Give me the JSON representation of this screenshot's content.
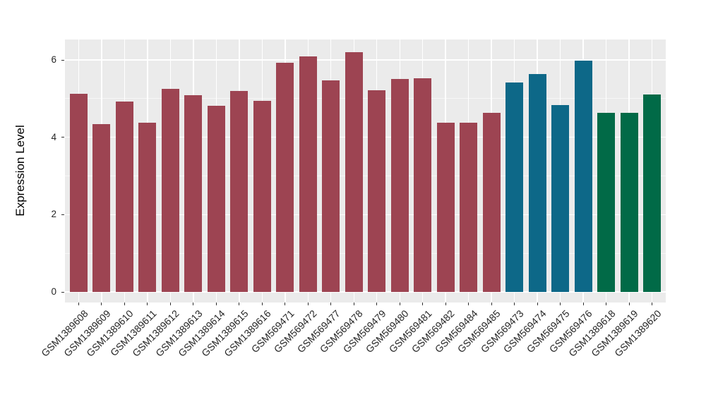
{
  "chart_data": {
    "type": "bar",
    "title": "",
    "xlabel": "",
    "ylabel": "Expression Level",
    "categories": [
      "GSM1389608",
      "GSM1389609",
      "GSM1389610",
      "GSM1389611",
      "GSM1389612",
      "GSM1389613",
      "GSM1389614",
      "GSM1389615",
      "GSM1389616",
      "GSM569471",
      "GSM569472",
      "GSM569477",
      "GSM569478",
      "GSM569479",
      "GSM569480",
      "GSM569481",
      "GSM569482",
      "GSM569484",
      "GSM569485",
      "GSM569473",
      "GSM569474",
      "GSM569475",
      "GSM569476",
      "GSM1389618",
      "GSM1389619",
      "GSM1389620"
    ],
    "values": [
      5.12,
      4.35,
      4.93,
      4.37,
      5.26,
      5.08,
      4.82,
      5.2,
      4.94,
      5.93,
      6.1,
      5.48,
      6.21,
      5.22,
      5.5,
      5.52,
      4.38,
      4.38,
      4.63,
      5.42,
      5.63,
      4.84,
      5.99,
      4.63,
      4.63,
      5.1
    ],
    "colors": [
      "#9D4452",
      "#9D4452",
      "#9D4452",
      "#9D4452",
      "#9D4452",
      "#9D4452",
      "#9D4452",
      "#9D4452",
      "#9D4452",
      "#9D4452",
      "#9D4452",
      "#9D4452",
      "#9D4452",
      "#9D4452",
      "#9D4452",
      "#9D4452",
      "#9D4452",
      "#9D4452",
      "#9D4452",
      "#0D6888",
      "#0D6888",
      "#0D6888",
      "#0D6888",
      "#016A47",
      "#016A47",
      "#016A47"
    ],
    "group_palette": {
      "maroon": "#9D4452",
      "blue": "#0D6888",
      "green": "#016A47"
    },
    "y_ticks": [
      0,
      2,
      4,
      6
    ],
    "y_minor_ticks": [
      1,
      3,
      5
    ],
    "ylim": [
      -0.27,
      6.53
    ],
    "grid": true,
    "legend_position": "none",
    "panel_bg": "#EBEBEB",
    "grid_color": "#FFFFFF",
    "axis_text_color": "#262626"
  }
}
